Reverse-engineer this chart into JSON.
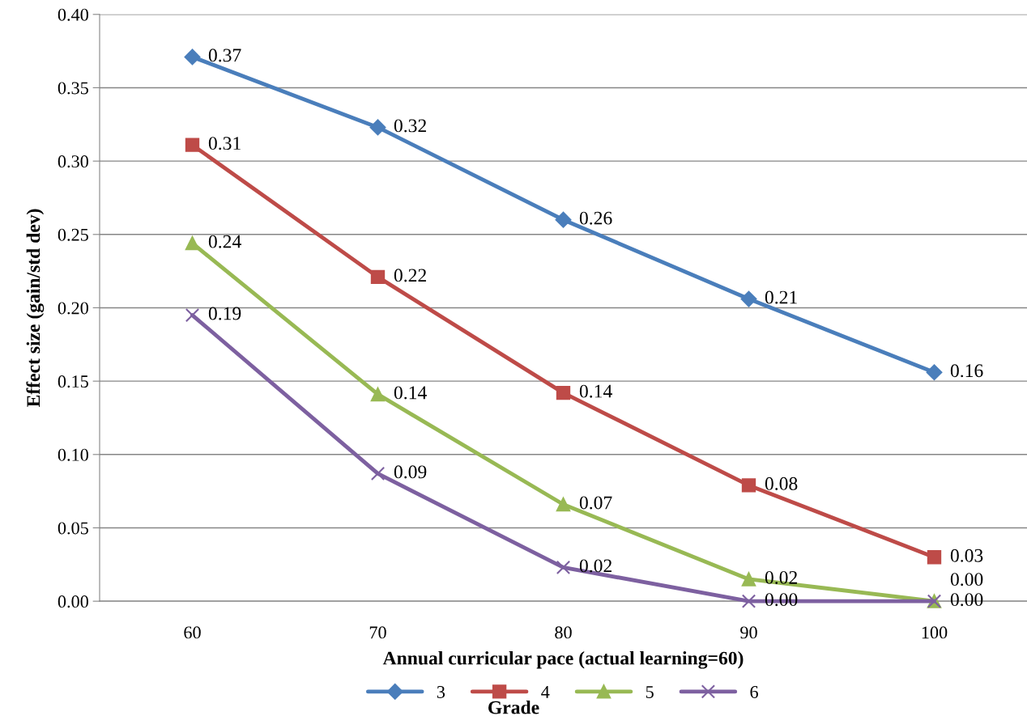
{
  "chart_data": {
    "type": "line",
    "xlabel": "Annual curricular pace (actual learning=60)",
    "ylabel": "Effect size (gain/std dev)",
    "legend_title": "Grade",
    "categories": [
      "60",
      "70",
      "80",
      "90",
      "100"
    ],
    "ylim": [
      0,
      0.4
    ],
    "yticks": [
      {
        "value": 0,
        "label": "0.00"
      },
      {
        "value": 0.05,
        "label": "0.05"
      },
      {
        "value": 0.1,
        "label": "0.10"
      },
      {
        "value": 0.15,
        "label": "0.15"
      },
      {
        "value": 0.2,
        "label": "0.20"
      },
      {
        "value": 0.25,
        "label": "0.25"
      },
      {
        "value": 0.3,
        "label": "0.30"
      },
      {
        "value": 0.35,
        "label": "0.35"
      },
      {
        "value": 0.4,
        "label": "0.40"
      }
    ],
    "grid": "y",
    "legend": "bottom",
    "line_style": "solid",
    "series": [
      {
        "name": "3",
        "color": "#4a7ebb",
        "marker": "diamond",
        "values": [
          0.371,
          0.323,
          0.26,
          0.206,
          0.156
        ],
        "value_labels": [
          "0.37",
          "0.32",
          "0.26",
          "0.21",
          "0.16"
        ]
      },
      {
        "name": "4",
        "color": "#be4b48",
        "marker": "square",
        "values": [
          0.311,
          0.221,
          0.142,
          0.079,
          0.03
        ],
        "value_labels": [
          "0.31",
          "0.22",
          "0.14",
          "0.08",
          "0.03"
        ]
      },
      {
        "name": "5",
        "color": "#98b954",
        "marker": "triangle",
        "values": [
          0.244,
          0.141,
          0.066,
          0.015,
          0.0
        ],
        "value_labels": [
          "0.24",
          "0.14",
          "0.07",
          "0.02",
          "0.00"
        ]
      },
      {
        "name": "6",
        "color": "#7d60a0",
        "marker": "cross",
        "values": [
          0.195,
          0.087,
          0.023,
          0.0,
          0.0
        ],
        "value_labels": [
          "0.19",
          "0.09",
          "0.02",
          "0.00",
          "0.00"
        ]
      }
    ]
  }
}
